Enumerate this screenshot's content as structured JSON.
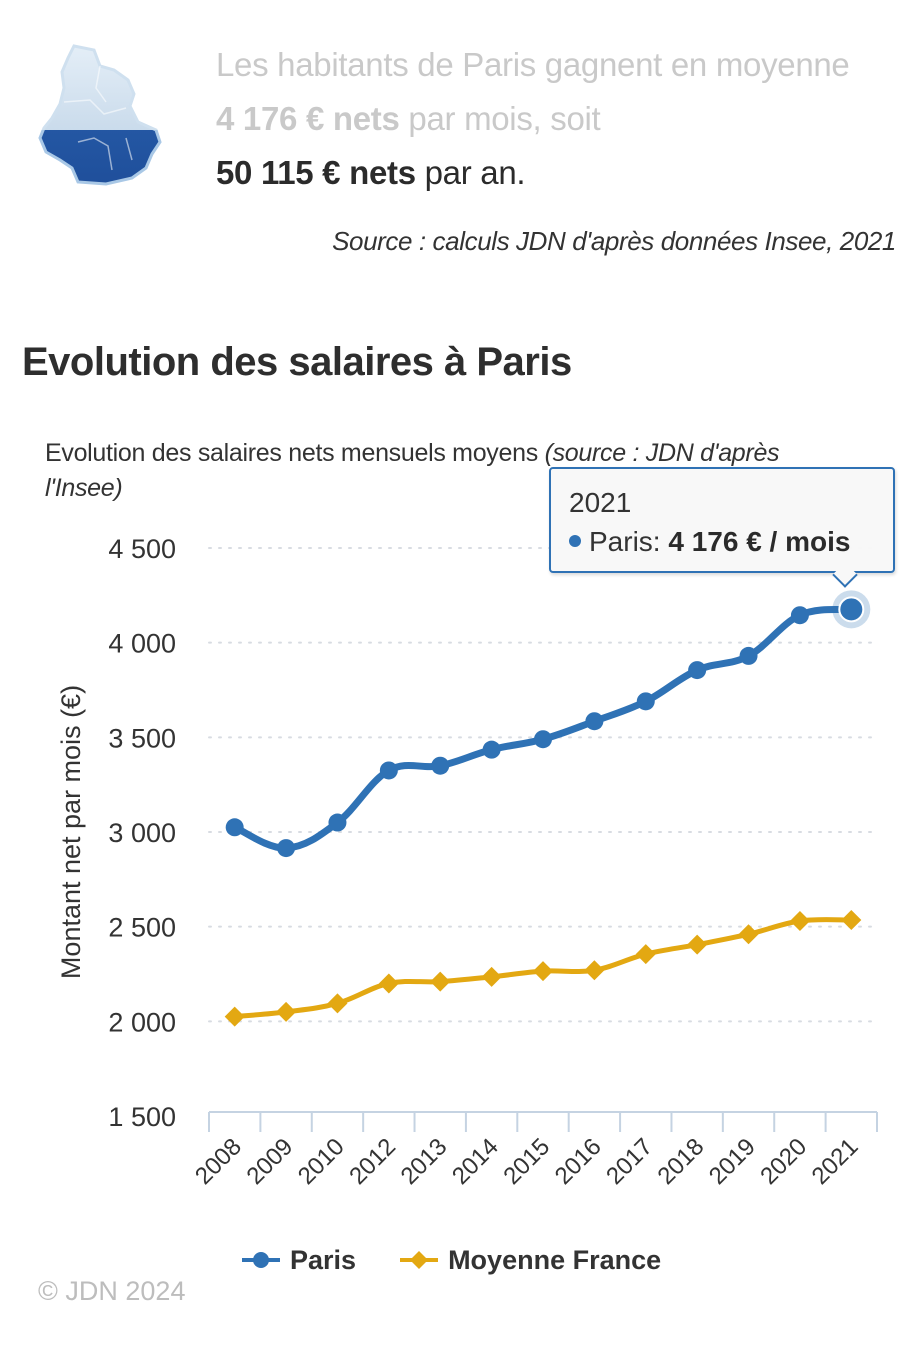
{
  "intro": {
    "text_before": "Les habitants de Paris gagnent en moyenne ",
    "monthly_value": "4 176 € nets",
    "text_middle": " par mois, soit ",
    "annual_value": "50 115 € nets",
    "text_after": " par an."
  },
  "source": "Source : calculs JDN d'après données Insee, 2021",
  "section_title": "Evolution des salaires à Paris",
  "map_icon": "paris-region-map-icon",
  "tooltip": {
    "year": "2021",
    "series_label": "Paris: ",
    "value": "4 176 € / mois"
  },
  "copyright": "© JDN 2024",
  "colors": {
    "paris": "#2f72b5",
    "france": "#e3a812",
    "grid": "#d8dce2",
    "axis": "#c5d3e2"
  },
  "chart_data": {
    "type": "line",
    "title": "Evolution des salaires nets mensuels moyens",
    "title_source": "(source : JDN d'après l'Insee)",
    "xlabel": "",
    "ylabel": "Montant net par mois (€)",
    "ylim": [
      1500,
      4500
    ],
    "yticks": [
      1500,
      2000,
      2500,
      3000,
      3500,
      4000,
      4500
    ],
    "ytick_labels": [
      "1 500",
      "2 000",
      "2 500",
      "3 000",
      "3 500",
      "4 000",
      "4 500"
    ],
    "grid": true,
    "legend_position": "bottom",
    "categories": [
      "2008",
      "2009",
      "2010",
      "2012",
      "2013",
      "2014",
      "2015",
      "2016",
      "2017",
      "2018",
      "2019",
      "2020",
      "2021"
    ],
    "series": [
      {
        "name": "Paris",
        "marker": "circle",
        "values": [
          3025,
          2915,
          3050,
          3325,
          3350,
          3435,
          3490,
          3585,
          3690,
          3855,
          3930,
          4145,
          4176
        ]
      },
      {
        "name": "Moyenne France",
        "marker": "diamond",
        "values": [
          2025,
          2050,
          2095,
          2200,
          2210,
          2235,
          2265,
          2270,
          2355,
          2405,
          2460,
          2530,
          2535
        ]
      }
    ],
    "highlighted_point": {
      "series": "Paris",
      "category": "2021"
    }
  }
}
